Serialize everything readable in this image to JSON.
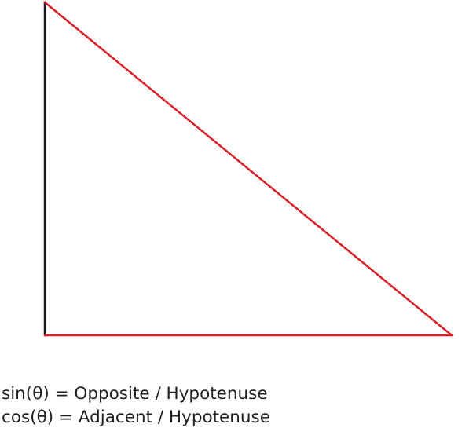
{
  "diagram": {
    "shape": "right-triangle",
    "right_angle_corner": "bottom-left",
    "colors": {
      "vertical_side": "#1a1a1a",
      "bottom_side": "#d81f2a",
      "hypotenuse": "#d81f2a",
      "background": "#ffffff",
      "text": "#1f1f1f"
    }
  },
  "formulas": {
    "sin": "sin(θ) = Opposite / Hypotenuse",
    "cos": "cos(θ) = Adjacent / Hypotenuse"
  }
}
